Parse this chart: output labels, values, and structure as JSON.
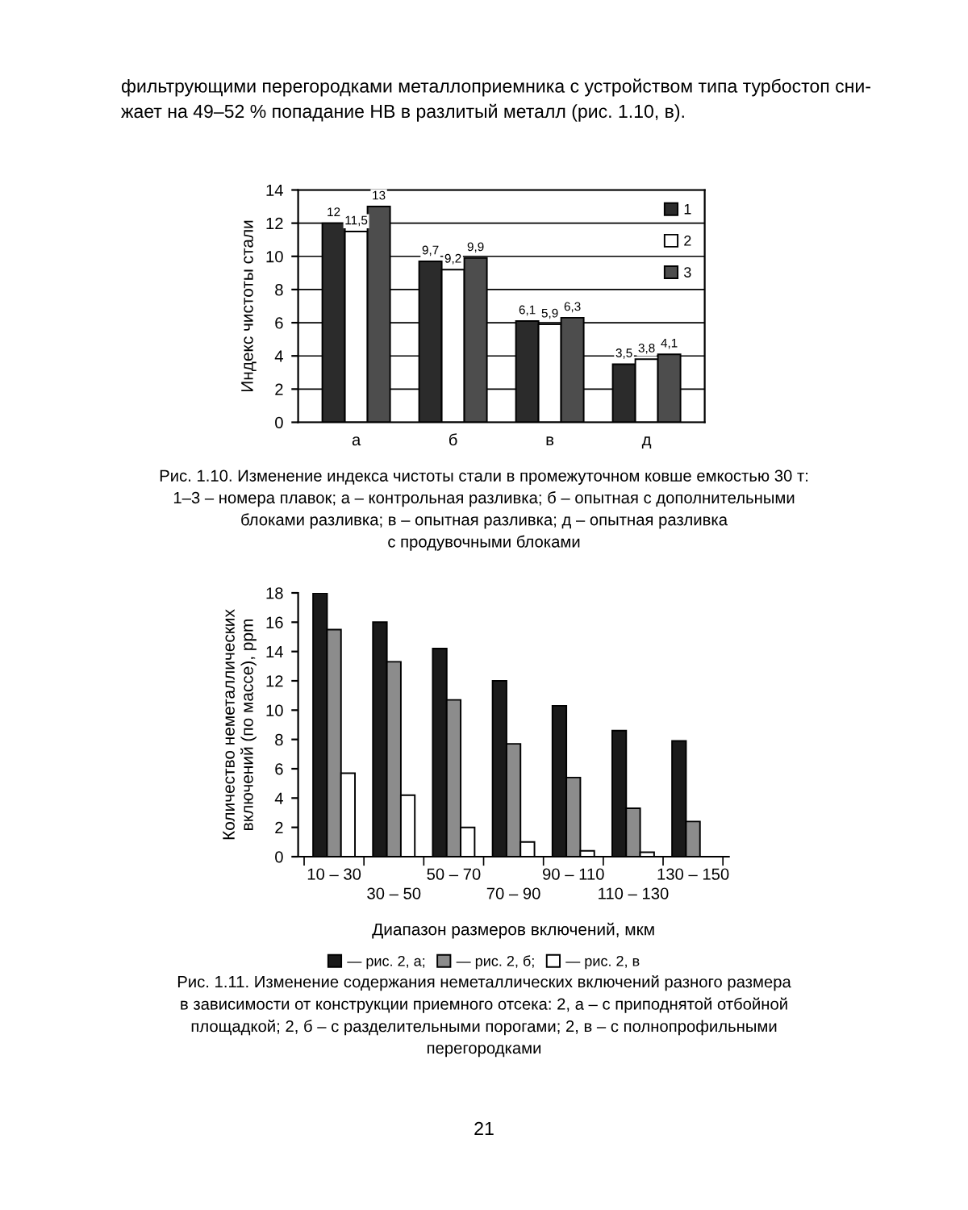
{
  "chart_data": [
    {
      "type": "bar",
      "ylabel": "Индекс чистоты стали",
      "categories": [
        "а",
        "б",
        "в",
        "д"
      ],
      "series": [
        {
          "name": "1",
          "color": "#2b2b2b",
          "values": [
            12,
            9.7,
            6.1,
            3.5
          ],
          "value_labels": [
            "12",
            "9,7",
            "6,1",
            "3,5"
          ]
        },
        {
          "name": "2",
          "color": "#ffffff",
          "values": [
            11.5,
            9.2,
            5.9,
            3.8
          ],
          "value_labels": [
            "11,5",
            "9,2",
            "5,9",
            "3,8"
          ]
        },
        {
          "name": "3",
          "color": "#4d4d4d",
          "values": [
            13,
            9.9,
            6.3,
            4.1
          ],
          "value_labels": [
            "13",
            "9,9",
            "6,3",
            "4,1"
          ]
        }
      ],
      "ylim": [
        0,
        14
      ],
      "yticks": [
        0,
        2,
        4,
        6,
        8,
        10,
        12,
        14
      ],
      "grid": "y",
      "legend": "top right",
      "annotations": [
        "фильтрующими перегородками металлоприемника с устройством типа турбостоп сни-\nжает на 49–52 % попадание НВ в разлитый металл (рис. 1.10, в).",
        "Рис. 1.10. Изменение индекса чистоты стали в промежуточном ковше емкостью 30 т:\n1–3 – номера плавок; а – контрольная разливка; б – опытная с дополнительными\nблоками разливка; в – опытная разливка; д – опытная разливка\nс продувочными блоками"
      ]
    },
    {
      "type": "bar",
      "xlabel": "Диапазон размеров включений, мкм",
      "ylabel": "Количество неметаллических\nвключений (по массе), ppm",
      "categories": [
        "10 – 30",
        "30 – 50",
        "50 – 70",
        "70 – 90",
        "90 – 110",
        "110 – 130",
        "130 – 150"
      ],
      "series": [
        {
          "name": "— рис. 2, а;",
          "color": "#1a1a1a",
          "values": [
            18,
            16,
            14.2,
            12,
            10.3,
            8.6,
            7.9
          ]
        },
        {
          "name": "— рис. 2, б;",
          "color": "#8c8c8c",
          "values": [
            15.5,
            13.3,
            10.7,
            7.7,
            5.4,
            3.3,
            2.4
          ]
        },
        {
          "name": "— рис. 2, в",
          "color": "#ffffff",
          "values": [
            5.7,
            4.2,
            2.0,
            1.0,
            0.4,
            0.3,
            null
          ]
        }
      ],
      "ylim": [
        0,
        18
      ],
      "yticks": [
        0,
        2,
        4,
        6,
        8,
        10,
        12,
        14,
        16,
        18
      ],
      "grid": false,
      "legend": "bottom",
      "annotations": [
        "Рис. 1.11. Изменение содержания неметаллических включений разного размера\nв зависимости от конструкции приемного отсека: 2, а – с приподнятой отбойной\nплощадкой; 2, б – с разделительными порогами; 2, в – с полнопрофильными\nперегородками",
        "21"
      ]
    }
  ]
}
